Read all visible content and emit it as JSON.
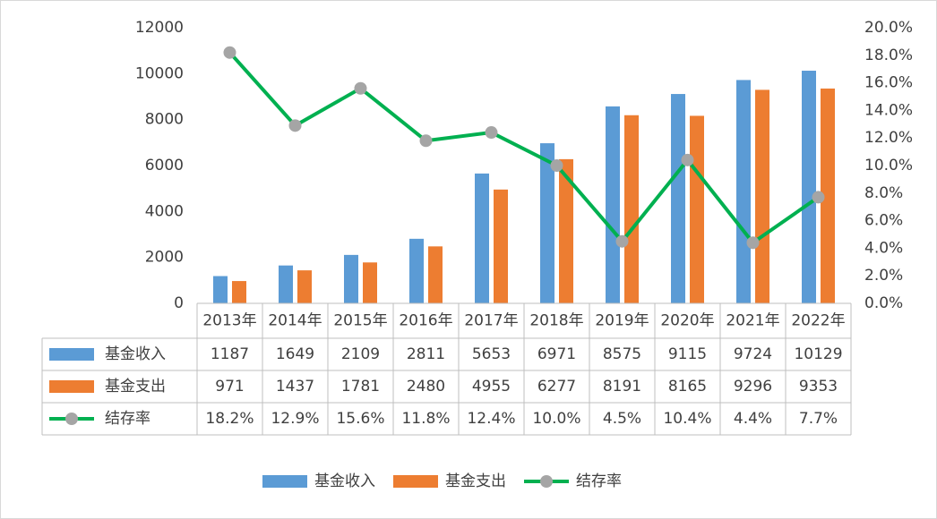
{
  "chart_data": {
    "type": "bar_line_table",
    "categories": [
      "2013年",
      "2014年",
      "2015年",
      "2016年",
      "2017年",
      "2018年",
      "2019年",
      "2020年",
      "2021年",
      "2022年"
    ],
    "series": [
      {
        "name": "基金收入",
        "color": "#5b9bd5",
        "type": "bar",
        "values": [
          1187,
          1649,
          2109,
          2811,
          5653,
          6971,
          8575,
          9115,
          9724,
          10129
        ]
      },
      {
        "name": "基金支出",
        "color": "#ed7d31",
        "type": "bar",
        "values": [
          971,
          1437,
          1781,
          2480,
          4955,
          6277,
          8191,
          8165,
          9296,
          9353
        ]
      },
      {
        "name": "结存率",
        "color": "#00b050",
        "marker_color": "#a5a5a5",
        "type": "line",
        "axis": "y2",
        "values": [
          18.2,
          12.9,
          15.6,
          11.8,
          12.4,
          10.0,
          4.5,
          10.4,
          4.4,
          7.7
        ],
        "value_labels": [
          "18.2%",
          "12.9%",
          "15.6%",
          "11.8%",
          "12.4%",
          "10.0%",
          "4.5%",
          "10.4%",
          "4.4%",
          "7.7%"
        ]
      }
    ],
    "ylim": [
      0,
      12000
    ],
    "yticks": [
      0,
      2000,
      4000,
      6000,
      8000,
      10000,
      12000
    ],
    "y2lim": [
      0,
      20
    ],
    "y2ticks": [
      {
        "value": 0,
        "label": "0.0%"
      },
      {
        "value": 2,
        "label": "2.0%"
      },
      {
        "value": 4,
        "label": "4.0%"
      },
      {
        "value": 6,
        "label": "6.0%"
      },
      {
        "value": 8,
        "label": "8.0%"
      },
      {
        "value": 10,
        "label": "10.0%"
      },
      {
        "value": 12,
        "label": "12.0%"
      },
      {
        "value": 14,
        "label": "14.0%"
      },
      {
        "value": 16,
        "label": "16.0%"
      },
      {
        "value": 18,
        "label": "18.0%"
      },
      {
        "value": 20,
        "label": "20.0%"
      }
    ],
    "grid": false,
    "legend": "bottom"
  }
}
